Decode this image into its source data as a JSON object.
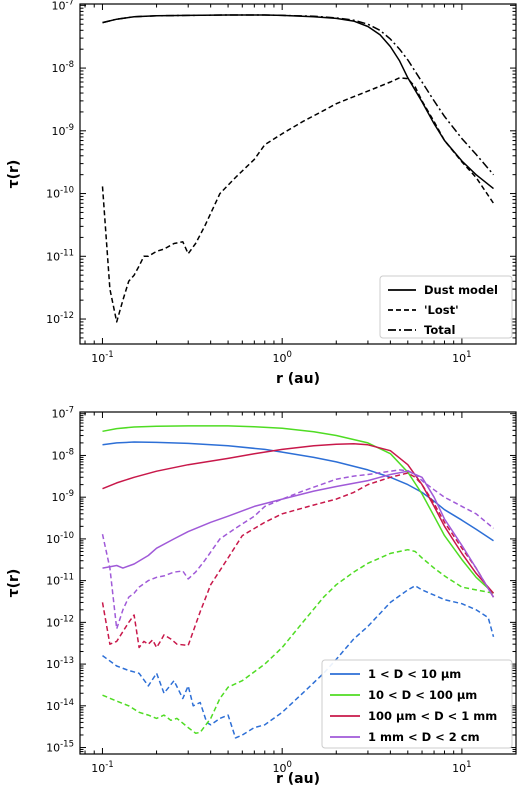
{
  "chart_data": [
    {
      "type": "line",
      "xlabel": "r (au)",
      "ylabel": "τ(r)",
      "xscale": "log",
      "yscale": "log",
      "xlim": [
        0.075,
        20
      ],
      "ylim": [
        4e-13,
        1.05e-07
      ],
      "xticks": [
        {
          "value": 0.1,
          "base": "10",
          "exp": "-1"
        },
        {
          "value": 1,
          "base": "10",
          "exp": "0"
        },
        {
          "value": 10,
          "base": "10",
          "exp": "1"
        }
      ],
      "yticks": [
        {
          "value": 1e-12,
          "base": "10",
          "exp": "-12"
        },
        {
          "value": 1e-11,
          "base": "10",
          "exp": "-11"
        },
        {
          "value": 1e-10,
          "base": "10",
          "exp": "-10"
        },
        {
          "value": 1e-09,
          "base": "10",
          "exp": "-9"
        },
        {
          "value": 1e-08,
          "base": "10",
          "exp": "-8"
        },
        {
          "value": 1e-07,
          "base": "10",
          "exp": "-7"
        }
      ],
      "legend_position": "bottom-right",
      "series": [
        {
          "name": "Dust model",
          "color": "#000000",
          "dash": "solid",
          "x": [
            0.1,
            0.12,
            0.15,
            0.2,
            0.3,
            0.5,
            0.8,
            1.0,
            1.5,
            2.0,
            2.5,
            3.0,
            3.5,
            4.0,
            4.5,
            5.0,
            6.0,
            7.0,
            8.0,
            10.0,
            12.0,
            15.0
          ],
          "y": [
            5.3e-08,
            6e-08,
            6.6e-08,
            6.8e-08,
            6.9e-08,
            7e-08,
            7e-08,
            6.9e-08,
            6.6e-08,
            6.2e-08,
            5.6e-08,
            4.6e-08,
            3.4e-08,
            2.2e-08,
            1.3e-08,
            7e-09,
            2.9e-09,
            1.3e-09,
            7e-10,
            3.3e-10,
            2e-10,
            1.2e-10
          ]
        },
        {
          "name": "'Lost'",
          "color": "#000000",
          "dash": "dashed",
          "x": [
            0.1,
            0.11,
            0.12,
            0.13,
            0.14,
            0.15,
            0.16,
            0.17,
            0.18,
            0.2,
            0.22,
            0.25,
            0.28,
            0.3,
            0.33,
            0.37,
            0.45,
            0.55,
            0.7,
            0.8,
            1.0,
            1.3,
            1.7,
            2.0,
            2.5,
            3.0,
            4.0,
            4.5,
            5.0,
            5.5,
            6.0,
            7.0,
            8.0,
            10.0,
            12.0,
            15.0
          ],
          "y": [
            1.3e-10,
            3e-12,
            9e-13,
            2e-12,
            4e-12,
            5e-12,
            7e-12,
            1e-11,
            1e-11,
            1.2e-11,
            1.3e-11,
            1.6e-11,
            1.7e-11,
            1.1e-11,
            1.6e-11,
            3e-11,
            1e-10,
            1.8e-10,
            3.5e-10,
            6e-10,
            9e-10,
            1.4e-09,
            2.1e-09,
            2.7e-09,
            3.5e-09,
            4.3e-09,
            6e-09,
            7e-09,
            6.8e-09,
            5e-09,
            3e-09,
            1.4e-09,
            7e-10,
            3.2e-10,
            1.8e-10,
            7e-11
          ]
        },
        {
          "name": "Total",
          "color": "#000000",
          "dash": "dashdot",
          "x": [
            0.1,
            0.12,
            0.15,
            0.2,
            0.3,
            0.5,
            0.8,
            1.0,
            1.5,
            2.0,
            2.5,
            3.0,
            3.5,
            4.0,
            4.5,
            5.0,
            6.0,
            7.0,
            8.0,
            10.0,
            12.0,
            15.0
          ],
          "y": [
            5.3e-08,
            6e-08,
            6.6e-08,
            6.8e-08,
            6.9e-08,
            7e-08,
            7e-08,
            6.9e-08,
            6.7e-08,
            6.3e-08,
            5.8e-08,
            5e-08,
            4e-08,
            2.9e-08,
            2e-08,
            1.35e-08,
            6e-09,
            3e-09,
            1.7e-09,
            7.5e-10,
            4.2e-10,
            2e-10
          ]
        }
      ]
    },
    {
      "type": "line",
      "xlabel": "r (au)",
      "ylabel": "τ(r)",
      "xscale": "log",
      "yscale": "log",
      "xlim": [
        0.075,
        20
      ],
      "ylim": [
        7e-16,
        1.1e-07
      ],
      "xticks": [
        {
          "value": 0.1,
          "base": "10",
          "exp": "-1"
        },
        {
          "value": 1,
          "base": "10",
          "exp": "0"
        },
        {
          "value": 10,
          "base": "10",
          "exp": "1"
        }
      ],
      "yticks": [
        {
          "value": 1e-15,
          "base": "10",
          "exp": "-15"
        },
        {
          "value": 1e-14,
          "base": "10",
          "exp": "-14"
        },
        {
          "value": 1e-13,
          "base": "10",
          "exp": "-13"
        },
        {
          "value": 1e-12,
          "base": "10",
          "exp": "-12"
        },
        {
          "value": 1e-11,
          "base": "10",
          "exp": "-11"
        },
        {
          "value": 1e-10,
          "base": "10",
          "exp": "-10"
        },
        {
          "value": 1e-09,
          "base": "10",
          "exp": "-9"
        },
        {
          "value": 1e-08,
          "base": "10",
          "exp": "-8"
        },
        {
          "value": 1e-07,
          "base": "10",
          "exp": "-7"
        }
      ],
      "legend_position": "bottom-right",
      "legend": [
        {
          "text": "1 < D < 10 μm",
          "color": "#2d6fd6"
        },
        {
          "text": "10 < D < 100 μm",
          "color": "#4fdc23"
        },
        {
          "text": "100 μm < D < 1 mm",
          "color": "#c8184a"
        },
        {
          "text": "1 mm < D < 2 cm",
          "color": "#a05ad8"
        }
      ],
      "series": [
        {
          "color": "#2d6fd6",
          "dash": "solid",
          "x": [
            0.1,
            0.12,
            0.15,
            0.2,
            0.3,
            0.5,
            0.8,
            1.0,
            1.5,
            2.0,
            3.0,
            4.0,
            5.0,
            6.0,
            7.0,
            8.0,
            10.0,
            12.0,
            15.0
          ],
          "y": [
            1.8e-08,
            2e-08,
            2.1e-08,
            2.05e-08,
            1.95e-08,
            1.7e-08,
            1.4e-08,
            1.2e-08,
            9e-09,
            7e-09,
            4.5e-09,
            3e-09,
            2e-09,
            1.3e-09,
            8e-10,
            5e-10,
            2.8e-10,
            1.7e-10,
            9e-11
          ]
        },
        {
          "color": "#2d6fd6",
          "dash": "dashed",
          "x": [
            0.1,
            0.12,
            0.14,
            0.16,
            0.18,
            0.2,
            0.22,
            0.25,
            0.28,
            0.3,
            0.32,
            0.35,
            0.38,
            0.4,
            0.45,
            0.5,
            0.55,
            0.6,
            0.7,
            0.8,
            1.0,
            1.3,
            1.7,
            2.0,
            2.5,
            3.0,
            4.0,
            5.0,
            5.5,
            6.0,
            7.0,
            8.0,
            10.0,
            12.0,
            14.0,
            15.0
          ],
          "y": [
            1.6e-13,
            9e-14,
            7e-14,
            6e-14,
            3e-14,
            6e-14,
            2e-14,
            4e-14,
            1.5e-14,
            3e-14,
            1e-14,
            1.2e-14,
            4e-15,
            3.5e-15,
            5e-15,
            6e-15,
            1.7e-15,
            2e-15,
            3e-15,
            3.5e-15,
            7e-15,
            2e-14,
            6e-14,
            1.3e-13,
            4e-13,
            8e-13,
            3e-12,
            6e-12,
            7.5e-12,
            6e-12,
            4.5e-12,
            3.5e-12,
            2.8e-12,
            2e-12,
            1.3e-12,
            4.5e-13
          ]
        },
        {
          "color": "#4fdc23",
          "dash": "solid",
          "x": [
            0.1,
            0.12,
            0.15,
            0.2,
            0.3,
            0.5,
            0.7,
            1.0,
            1.5,
            2.0,
            3.0,
            4.0,
            5.0,
            6.0,
            7.0,
            8.0,
            10.0,
            12.0,
            15.0
          ],
          "y": [
            3.8e-08,
            4.4e-08,
            4.8e-08,
            5e-08,
            5.1e-08,
            5.1e-08,
            4.9e-08,
            4.5e-08,
            3.7e-08,
            3e-08,
            2e-08,
            1.1e-08,
            4e-09,
            1.2e-09,
            3.5e-10,
            1.2e-10,
            3.2e-11,
            1.2e-11,
            5e-12
          ]
        },
        {
          "color": "#4fdc23",
          "dash": "dashed",
          "x": [
            0.1,
            0.12,
            0.14,
            0.16,
            0.18,
            0.2,
            0.22,
            0.24,
            0.26,
            0.3,
            0.33,
            0.35,
            0.4,
            0.45,
            0.5,
            0.6,
            0.8,
            1.0,
            1.3,
            1.7,
            2.0,
            2.5,
            3.0,
            4.0,
            5.0,
            5.5,
            6.0,
            7.0,
            8.0,
            10.0,
            12.0,
            15.0
          ],
          "y": [
            1.8e-14,
            1.3e-14,
            1e-14,
            7e-15,
            6e-15,
            5e-15,
            6e-15,
            4.5e-15,
            5e-15,
            3e-15,
            2.2e-15,
            2.3e-15,
            5e-15,
            1.5e-14,
            2.8e-14,
            4e-14,
            1e-13,
            2.5e-13,
            1e-12,
            4e-12,
            8e-12,
            1.6e-11,
            2.6e-11,
            4.5e-11,
            5.5e-11,
            5e-11,
            3.5e-11,
            2e-11,
            1.3e-11,
            7e-12,
            6e-12,
            5e-12
          ]
        },
        {
          "color": "#c8184a",
          "dash": "solid",
          "x": [
            0.1,
            0.12,
            0.15,
            0.2,
            0.3,
            0.5,
            0.7,
            1.0,
            1.5,
            2.0,
            2.5,
            3.0,
            4.0,
            5.0,
            6.0,
            7.0,
            8.0,
            10.0,
            12.0,
            15.0
          ],
          "y": [
            1.6e-09,
            2.2e-09,
            3e-09,
            4.2e-09,
            6e-09,
            8.5e-09,
            1.1e-08,
            1.4e-08,
            1.7e-08,
            1.85e-08,
            1.9e-08,
            1.8e-08,
            1.3e-08,
            6e-09,
            2e-09,
            6e-10,
            2e-10,
            4.5e-11,
            1.5e-11,
            5e-12
          ]
        },
        {
          "color": "#c8184a",
          "dash": "dashed",
          "x": [
            0.1,
            0.11,
            0.12,
            0.13,
            0.14,
            0.15,
            0.16,
            0.17,
            0.18,
            0.19,
            0.2,
            0.21,
            0.22,
            0.24,
            0.26,
            0.3,
            0.35,
            0.4,
            0.5,
            0.6,
            0.8,
            1.0,
            1.5,
            2.0,
            2.5,
            3.0,
            4.0,
            5.0,
            5.5,
            6.0,
            7.0,
            8.0,
            10.0,
            12.0,
            15.0
          ],
          "y": [
            3e-12,
            3e-13,
            3.5e-13,
            6e-13,
            1e-12,
            1.5e-12,
            2.5e-13,
            3.5e-13,
            3e-13,
            3.8e-13,
            2.5e-13,
            3.5e-13,
            5e-13,
            4e-13,
            3e-13,
            2.8e-13,
            1.8e-12,
            8e-12,
            3.5e-11,
            1.2e-10,
            2.5e-10,
            4e-10,
            6.5e-10,
            9e-10,
            1.3e-09,
            2e-09,
            3e-09,
            3.8e-09,
            3e-09,
            2e-09,
            7e-10,
            2.5e-10,
            6e-11,
            2e-11,
            4e-12
          ]
        },
        {
          "color": "#a05ad8",
          "dash": "solid",
          "x": [
            0.1,
            0.12,
            0.13,
            0.15,
            0.18,
            0.2,
            0.25,
            0.3,
            0.4,
            0.5,
            0.7,
            1.0,
            1.5,
            2.0,
            3.0,
            4.0,
            5.0,
            6.0,
            7.0,
            8.0,
            10.0,
            12.0,
            15.0
          ],
          "y": [
            2e-11,
            2.3e-11,
            2e-11,
            2.5e-11,
            4e-11,
            6e-11,
            1e-10,
            1.5e-10,
            2.5e-10,
            3.5e-10,
            6e-10,
            9e-10,
            1.4e-09,
            1.8e-09,
            2.5e-09,
            3.5e-09,
            4.2e-09,
            3e-09,
            1e-09,
            3e-10,
            7e-11,
            2e-11,
            4e-12
          ]
        },
        {
          "color": "#a05ad8",
          "dash": "dashed",
          "x": [
            0.1,
            0.11,
            0.12,
            0.13,
            0.14,
            0.15,
            0.16,
            0.18,
            0.2,
            0.22,
            0.25,
            0.28,
            0.3,
            0.33,
            0.37,
            0.45,
            0.55,
            0.7,
            0.8,
            1.0,
            1.3,
            1.7,
            2.0,
            2.5,
            3.0,
            4.0,
            4.5,
            5.0,
            5.5,
            6.0,
            7.0,
            8.0,
            10.0,
            12.0,
            15.0
          ],
          "y": [
            1.3e-10,
            2e-11,
            7e-13,
            2e-12,
            4e-12,
            5e-12,
            7e-12,
            1e-11,
            1.2e-11,
            1.3e-11,
            1.6e-11,
            1.7e-11,
            1.1e-11,
            1.6e-11,
            3e-11,
            1e-10,
            1.8e-10,
            3.5e-10,
            6e-10,
            9e-10,
            1.4e-09,
            2.1e-09,
            2.7e-09,
            3.2e-09,
            3.5e-09,
            4.2e-09,
            4.5e-09,
            4.3e-09,
            3.5e-09,
            2.5e-09,
            1.5e-09,
            1e-09,
            6e-10,
            4e-10,
            1.8e-10
          ]
        }
      ]
    }
  ]
}
